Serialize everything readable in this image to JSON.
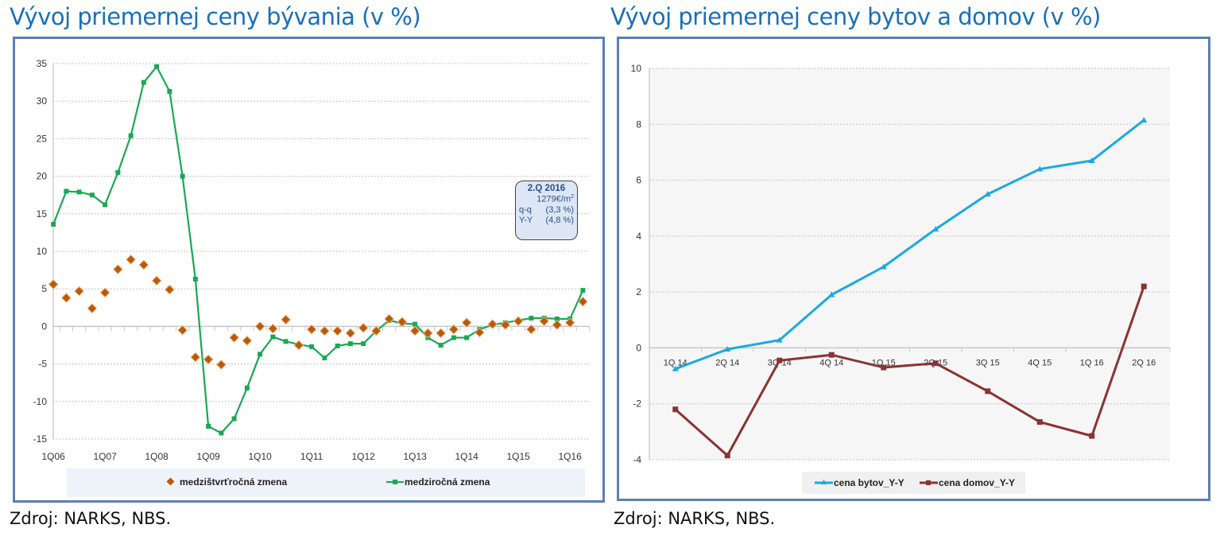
{
  "left": {
    "title": "Vývoj priemernej ceny bývania  (v %)",
    "source": "Zdroj: NARKS, NBS.",
    "annotation": {
      "period": "2.Q 2016",
      "price": "1279€/m",
      "price_sup": "2",
      "qq_label": "q-q",
      "qq_value": "(3,3 %)",
      "yy_label": "Y-Y",
      "yy_value": "(4,8 %)"
    }
  },
  "right": {
    "title": "Vývoj priemernej ceny bytov a domov (v %)",
    "source": "Zdroj: NARKS, NBS."
  },
  "chart_data": [
    {
      "type": "line",
      "title": "Vývoj priemernej ceny bývania  (v %)",
      "xlabel": "",
      "ylabel": "",
      "ylim": [
        -15,
        35
      ],
      "yticks": [
        "35",
        "30",
        "25",
        "20",
        "15",
        "10",
        "5",
        "0",
        "-5",
        "-10",
        "-15"
      ],
      "ytick_values": [
        35,
        30,
        25,
        20,
        15,
        10,
        5,
        0,
        -5,
        -10,
        -15
      ],
      "xtick_labels": [
        "1Q06",
        "1Q07",
        "1Q08",
        "1Q09",
        "1Q10",
        "1Q11",
        "1Q12",
        "1Q13",
        "1Q14",
        "1Q15",
        "1Q16"
      ],
      "x": [
        "1Q06",
        "2Q06",
        "3Q06",
        "4Q06",
        "1Q07",
        "2Q07",
        "3Q07",
        "4Q07",
        "1Q08",
        "2Q08",
        "3Q08",
        "4Q08",
        "1Q09",
        "2Q09",
        "3Q09",
        "4Q09",
        "1Q10",
        "2Q10",
        "3Q10",
        "4Q10",
        "1Q11",
        "2Q11",
        "3Q11",
        "4Q11",
        "1Q12",
        "2Q12",
        "3Q12",
        "4Q12",
        "1Q13",
        "2Q13",
        "3Q13",
        "4Q13",
        "1Q14",
        "2Q14",
        "3Q14",
        "4Q14",
        "1Q15",
        "2Q15",
        "3Q15",
        "4Q15",
        "1Q16",
        "2Q16"
      ],
      "grid": true,
      "legend": "bottom",
      "series": [
        {
          "name": "medzištvrťročná zmena",
          "style": "scatter-diamond",
          "color": "#b85a0e",
          "values": [
            5.6,
            3.8,
            4.7,
            2.4,
            4.5,
            7.6,
            8.9,
            8.2,
            6.1,
            4.9,
            -0.5,
            -4.1,
            -4.4,
            -5.1,
            -1.5,
            -1.9,
            0.0,
            -0.3,
            0.9,
            -2.5,
            -0.4,
            -0.6,
            -0.6,
            -0.9,
            -0.2,
            -0.6,
            1.0,
            0.6,
            -0.6,
            -0.9,
            -0.9,
            -0.4,
            0.5,
            -0.8,
            0.3,
            0.2,
            0.7,
            -0.4,
            0.7,
            0.2,
            0.5,
            3.3
          ]
        },
        {
          "name": "medziročná zmena",
          "style": "line-square",
          "color": "#1aa853",
          "values": [
            13.6,
            18.0,
            17.9,
            17.5,
            16.2,
            20.5,
            25.4,
            32.5,
            34.6,
            31.3,
            20.0,
            6.3,
            -13.3,
            -14.2,
            -12.3,
            -8.2,
            -3.7,
            -1.4,
            -2.0,
            -2.4,
            -2.7,
            -4.2,
            -2.6,
            -2.3,
            -2.3,
            -0.6,
            0.8,
            0.4,
            0.3,
            -1.5,
            -2.5,
            -1.5,
            -1.5,
            -0.4,
            0.2,
            0.5,
            0.8,
            1.1,
            1.1,
            1.0,
            1.0,
            4.8
          ]
        }
      ]
    },
    {
      "type": "line",
      "title": "Vývoj priemernej ceny bytov a domov (v %)",
      "xlabel": "",
      "ylabel": "",
      "ylim": [
        -4,
        10
      ],
      "yticks": [
        "10",
        "8",
        "6",
        "4",
        "2",
        "0",
        "-2",
        "-4"
      ],
      "ytick_values": [
        10,
        8,
        6,
        4,
        2,
        0,
        -2,
        -4
      ],
      "categories": [
        "1Q 14",
        "2Q 14",
        "3Q 14",
        "4Q 14",
        "1Q 15",
        "2Q 15",
        "3Q 15",
        "4Q 15",
        "1Q 16",
        "2Q 16"
      ],
      "grid": true,
      "legend": "bottom",
      "series": [
        {
          "name": "cena bytov_Y-Y",
          "color": "#1aa9e0",
          "marker": "triangle",
          "values": [
            -0.75,
            -0.05,
            0.28,
            1.9,
            2.9,
            4.25,
            5.5,
            6.4,
            6.7,
            8.15
          ]
        },
        {
          "name": "cena domov_Y-Y",
          "color": "#8b3232",
          "marker": "square",
          "values": [
            -2.2,
            -3.85,
            -0.45,
            -0.25,
            -0.7,
            -0.55,
            -1.55,
            -2.65,
            -3.15,
            2.2
          ]
        }
      ]
    }
  ]
}
